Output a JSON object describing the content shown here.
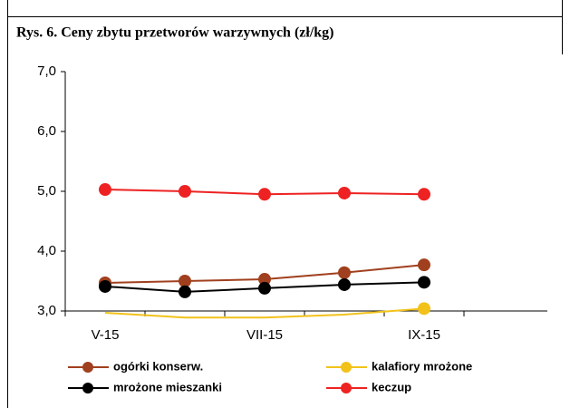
{
  "chart_data": {
    "type": "line",
    "title": "Rys. 6. Ceny zbytu przetworów warzywnych (zł/kg)",
    "categories": [
      "V-15",
      null,
      "VII-15",
      null,
      "IX-15",
      null
    ],
    "series": [
      {
        "name": "ogórki konserw.",
        "color": "#a0401e",
        "values": [
          3.47,
          3.5,
          3.53,
          3.64,
          3.77,
          null
        ]
      },
      {
        "name": "kalafiory mrożone",
        "color": "#f2c21a",
        "values": [
          2.97,
          2.89,
          2.89,
          2.94,
          3.04,
          null
        ]
      },
      {
        "name": "mrożone mieszanki",
        "color": "#000000",
        "values": [
          3.41,
          3.32,
          3.38,
          3.44,
          3.48,
          null
        ]
      },
      {
        "name": "keczup",
        "color": "#ee2222",
        "values": [
          5.03,
          5.0,
          4.95,
          4.97,
          4.95,
          null
        ]
      }
    ],
    "ylim": [
      3,
      7
    ],
    "yticks": [
      {
        "value": 3,
        "label": "3,0"
      },
      {
        "value": 4,
        "label": "4,0"
      },
      {
        "value": 5,
        "label": "5,0"
      },
      {
        "value": 6,
        "label": "6,0"
      },
      {
        "value": 7,
        "label": "7,0"
      }
    ],
    "legend": "bottom"
  }
}
